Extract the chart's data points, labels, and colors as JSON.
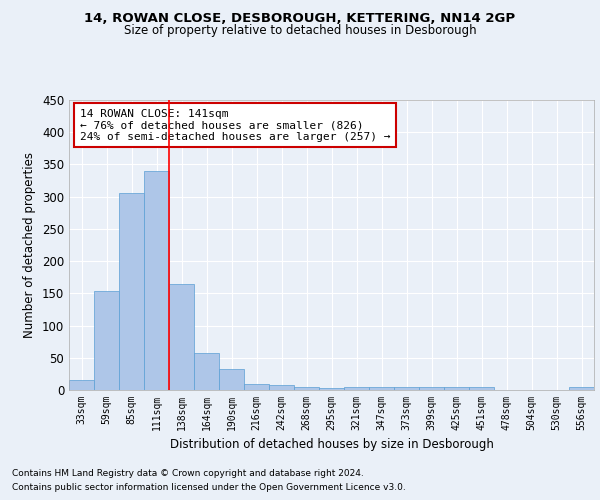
{
  "title1": "14, ROWAN CLOSE, DESBOROUGH, KETTERING, NN14 2GP",
  "title2": "Size of property relative to detached houses in Desborough",
  "xlabel": "Distribution of detached houses by size in Desborough",
  "ylabel": "Number of detached properties",
  "categories": [
    "33sqm",
    "59sqm",
    "85sqm",
    "111sqm",
    "138sqm",
    "164sqm",
    "190sqm",
    "216sqm",
    "242sqm",
    "268sqm",
    "295sqm",
    "321sqm",
    "347sqm",
    "373sqm",
    "399sqm",
    "425sqm",
    "451sqm",
    "478sqm",
    "504sqm",
    "530sqm",
    "556sqm"
  ],
  "values": [
    15,
    153,
    305,
    340,
    165,
    57,
    33,
    10,
    8,
    5,
    3,
    4,
    5,
    5,
    5,
    5,
    5,
    0,
    0,
    0,
    5
  ],
  "bar_color": "#aec6e8",
  "bar_edge_color": "#5a9fd4",
  "red_line_x": 3.5,
  "annotation_line1": "14 ROWAN CLOSE: 141sqm",
  "annotation_line2": "← 76% of detached houses are smaller (826)",
  "annotation_line3": "24% of semi-detached houses are larger (257) →",
  "annotation_box_color": "#ffffff",
  "annotation_box_edge": "#cc0000",
  "footnote1": "Contains HM Land Registry data © Crown copyright and database right 2024.",
  "footnote2": "Contains public sector information licensed under the Open Government Licence v3.0.",
  "bg_color": "#eaf0f8",
  "plot_bg_color": "#eaf0f8",
  "grid_color": "#ffffff",
  "ylim": [
    0,
    450
  ],
  "yticks": [
    0,
    50,
    100,
    150,
    200,
    250,
    300,
    350,
    400,
    450
  ]
}
